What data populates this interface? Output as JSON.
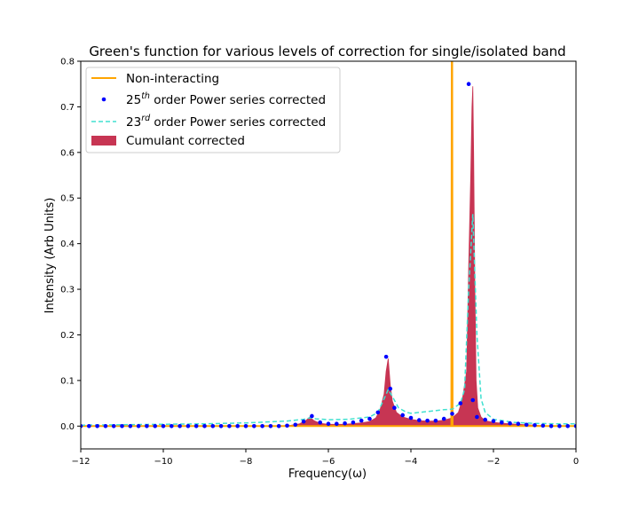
{
  "chart_data": {
    "type": "line",
    "title": "Green's function for various levels of correction for single/isolated band",
    "xlabel": "Frequency(ω)",
    "ylabel": "Intensity (Arb Units)",
    "xlim": [
      -12,
      0
    ],
    "ylim": [
      -0.05,
      0.8
    ],
    "xticks": [
      -12,
      -10,
      -8,
      -6,
      -4,
      -2,
      0
    ],
    "yticks": [
      0.0,
      0.1,
      0.2,
      0.3,
      0.4,
      0.5,
      0.6,
      0.7,
      0.8
    ],
    "grid": false,
    "legend_position": "top-left",
    "colors": {
      "non_interacting": "#ffa500",
      "power25": "#0000ff",
      "power23": "#40e0d0",
      "cumulant": "#c73553"
    },
    "series": [
      {
        "name": "Non-interacting",
        "type": "line",
        "note_legend": "Non-interacting",
        "x": [
          -12,
          -3.02,
          -3.01,
          -3.0,
          -2.99,
          0
        ],
        "y": [
          0.0,
          0.0,
          0.8,
          0.8,
          0.0,
          0.0
        ]
      },
      {
        "name": "25th order Power series corrected",
        "legend_parts": [
          "25",
          "th",
          " order Power series corrected"
        ],
        "type": "scatter",
        "x": [
          -12.0,
          -11.8,
          -11.6,
          -11.4,
          -11.2,
          -11.0,
          -10.8,
          -10.6,
          -10.4,
          -10.2,
          -10.0,
          -9.8,
          -9.6,
          -9.4,
          -9.2,
          -9.0,
          -8.8,
          -8.6,
          -8.4,
          -8.2,
          -8.0,
          -7.8,
          -7.6,
          -7.4,
          -7.2,
          -7.0,
          -6.8,
          -6.6,
          -6.4,
          -6.2,
          -6.0,
          -5.8,
          -5.6,
          -5.4,
          -5.2,
          -5.0,
          -4.8,
          -4.6,
          -4.5,
          -4.4,
          -4.2,
          -4.0,
          -3.8,
          -3.6,
          -3.4,
          -3.2,
          -3.0,
          -2.8,
          -2.6,
          -2.5,
          -2.4,
          -2.2,
          -2.0,
          -1.8,
          -1.6,
          -1.4,
          -1.2,
          -1.0,
          -0.8,
          -0.6,
          -0.4,
          -0.2,
          0.0
        ],
        "y": [
          0.0,
          0.0,
          0.0,
          0.0,
          0.0,
          0.0,
          0.0,
          0.0,
          0.0,
          0.0,
          0.0,
          0.0,
          0.0,
          0.0,
          0.0,
          0.0,
          0.0,
          0.0,
          0.0,
          0.0,
          0.0,
          0.0,
          0.0,
          0.0,
          0.0,
          0.001,
          0.003,
          0.01,
          0.022,
          0.008,
          0.005,
          0.005,
          0.006,
          0.008,
          0.012,
          0.016,
          0.03,
          0.152,
          0.082,
          0.04,
          0.024,
          0.018,
          0.013,
          0.012,
          0.012,
          0.016,
          0.027,
          0.05,
          0.75,
          0.057,
          0.02,
          0.014,
          0.011,
          0.008,
          0.006,
          0.005,
          0.003,
          0.002,
          0.001,
          0.0,
          0.0,
          0.0,
          0.0
        ]
      },
      {
        "name": "23rd order Power series corrected",
        "legend_parts": [
          "23",
          "rd",
          " order Power series corrected"
        ],
        "type": "line",
        "x": [
          -12.0,
          -11.0,
          -10.0,
          -9.0,
          -8.0,
          -7.5,
          -7.0,
          -6.8,
          -6.6,
          -6.45,
          -6.3,
          -6.0,
          -5.5,
          -5.0,
          -4.8,
          -4.65,
          -4.55,
          -4.45,
          -4.3,
          -4.1,
          -4.0,
          -3.8,
          -3.5,
          -3.2,
          -3.0,
          -2.8,
          -2.7,
          -2.6,
          -2.5,
          -2.4,
          -2.3,
          -2.2,
          -2.0,
          -1.5,
          -1.0,
          -0.5,
          0.0
        ],
        "y": [
          0.002,
          0.003,
          0.004,
          0.005,
          0.007,
          0.009,
          0.011,
          0.013,
          0.015,
          0.018,
          0.016,
          0.014,
          0.015,
          0.02,
          0.03,
          0.06,
          0.08,
          0.065,
          0.04,
          0.03,
          0.028,
          0.03,
          0.033,
          0.036,
          0.037,
          0.05,
          0.08,
          0.3,
          0.465,
          0.2,
          0.06,
          0.03,
          0.015,
          0.008,
          0.006,
          0.005,
          0.005
        ]
      },
      {
        "name": "Cumulant corrected",
        "type": "area",
        "x": [
          -12.0,
          -7.2,
          -6.9,
          -6.7,
          -6.55,
          -6.45,
          -6.35,
          -6.2,
          -6.0,
          -5.6,
          -5.2,
          -5.0,
          -4.85,
          -4.75,
          -4.65,
          -4.6,
          -4.55,
          -4.5,
          -4.45,
          -4.35,
          -4.2,
          -4.0,
          -3.8,
          -3.6,
          -3.4,
          -3.2,
          -3.0,
          -2.85,
          -2.75,
          -2.65,
          -2.6,
          -2.55,
          -2.52,
          -2.5,
          -2.48,
          -2.45,
          -2.42,
          -2.38,
          -2.3,
          -2.2,
          -2.0,
          -1.6,
          -1.2,
          -0.8,
          -0.4,
          0.0
        ],
        "y": [
          0.0,
          0.0,
          0.002,
          0.005,
          0.012,
          0.02,
          0.012,
          0.006,
          0.004,
          0.004,
          0.007,
          0.01,
          0.018,
          0.035,
          0.07,
          0.12,
          0.148,
          0.09,
          0.055,
          0.03,
          0.02,
          0.015,
          0.012,
          0.011,
          0.011,
          0.013,
          0.018,
          0.03,
          0.06,
          0.12,
          0.35,
          0.55,
          0.7,
          0.745,
          0.6,
          0.3,
          0.1,
          0.04,
          0.02,
          0.012,
          0.008,
          0.005,
          0.003,
          0.001,
          0.0,
          0.0
        ]
      }
    ]
  }
}
